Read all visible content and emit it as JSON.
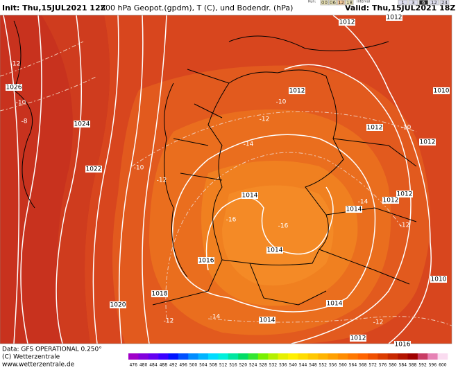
{
  "header": {
    "init": "Init: Thu,15JUL2021 12Z",
    "title": "500 hPa Geopot.(gpdm), T (C), und Bodendr. (hPa)",
    "valid": "Valid: Thu,15JUL2021 18Z",
    "run_label": "Run:",
    "runs": [
      "00",
      "06",
      "12",
      "18"
    ],
    "interval_label": "Interval",
    "intervals": [
      "1",
      "3",
      "6",
      "12",
      "24"
    ]
  },
  "map": {
    "pressure_labels": [
      "1012",
      "1012",
      "1012",
      "1012",
      "1012",
      "1012",
      "1012",
      "1014",
      "1014",
      "1014",
      "1016",
      "1018",
      "1020",
      "1022",
      "1024",
      "1026",
      "1014",
      "1014",
      "1012",
      "1010",
      "1010",
      "1016"
    ],
    "temperature_labels": [
      "-12",
      "-10",
      "-8",
      "-10",
      "-12",
      "-10",
      "-12",
      "-14",
      "-10",
      "-16",
      "-16",
      "-14",
      "-12",
      "-12",
      "-14",
      "-12"
    ]
  },
  "legend": {
    "ticks": [
      {
        "value": 476,
        "color": "#a000c8"
      },
      {
        "value": 480,
        "color": "#8200dc"
      },
      {
        "value": 484,
        "color": "#6400f0"
      },
      {
        "value": 488,
        "color": "#3c00ff"
      },
      {
        "value": 492,
        "color": "#0014ff"
      },
      {
        "value": 496,
        "color": "#0050ff"
      },
      {
        "value": 500,
        "color": "#008cff"
      },
      {
        "value": 504,
        "color": "#00b4ff"
      },
      {
        "value": 508,
        "color": "#00dcff"
      },
      {
        "value": 512,
        "color": "#00f0dc"
      },
      {
        "value": 516,
        "color": "#00e6a0"
      },
      {
        "value": 520,
        "color": "#00dc64"
      },
      {
        "value": 524,
        "color": "#32e632"
      },
      {
        "value": 528,
        "color": "#78f000"
      },
      {
        "value": 532,
        "color": "#b4f000"
      },
      {
        "value": 536,
        "color": "#e6f000"
      },
      {
        "value": 540,
        "color": "#fff000"
      },
      {
        "value": 544,
        "color": "#ffdc00"
      },
      {
        "value": 548,
        "color": "#ffc800"
      },
      {
        "value": 552,
        "color": "#ffb400"
      },
      {
        "value": 556,
        "color": "#ffa000"
      },
      {
        "value": 560,
        "color": "#ff8c00"
      },
      {
        "value": 564,
        "color": "#ff7800"
      },
      {
        "value": 568,
        "color": "#ff6400"
      },
      {
        "value": 572,
        "color": "#f05000"
      },
      {
        "value": 576,
        "color": "#dc3c00"
      },
      {
        "value": 580,
        "color": "#c82800"
      },
      {
        "value": 584,
        "color": "#b41400"
      },
      {
        "value": 588,
        "color": "#a00000"
      },
      {
        "value": 592,
        "color": "#c83c64"
      },
      {
        "value": 596,
        "color": "#e682b4"
      },
      {
        "value": 600,
        "color": "#fadcf0"
      }
    ]
  },
  "footer": {
    "data": "Data: GFS OPERATIONAL 0.250°",
    "copyright": "(C) Wetterzentrale",
    "url": "www.wetterzentrale.de"
  }
}
